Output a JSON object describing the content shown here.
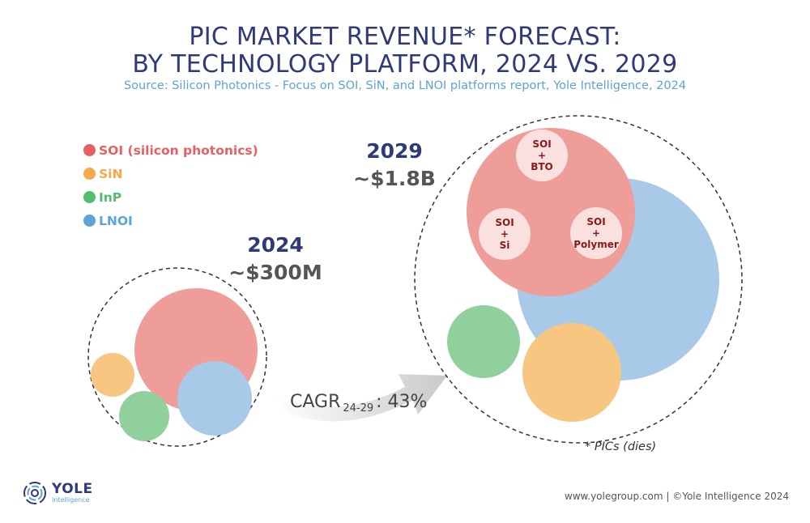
{
  "title_line1": "PIC MARKET REVENUE* FORECAST:",
  "title_line2": "BY TECHNOLOGY PLATFORM, 2024 VS. 2029",
  "source": "Source: Silicon Photonics  - Focus on SOI, SiN, and LNOI platforms  report, Yole Intelligence, 2024",
  "legend": [
    {
      "label": "SOI (silicon photonics)",
      "color": "#e85f62"
    },
    {
      "label": "SiN",
      "color": "#f6a84a"
    },
    {
      "label": "InP",
      "color": "#52bd6f"
    },
    {
      "label": "LNOI",
      "color": "#5da4d8"
    }
  ],
  "chart_data": {
    "type": "bubble",
    "groups": [
      {
        "year": "2024",
        "total_label": "~$300M"
      },
      {
        "year": "2029",
        "total_label": "~$1.8B",
        "soi_sub_segments": [
          "SOI\n+\nBTO",
          "SOI\n+\nSi",
          "SOI\n+\nPolymer"
        ]
      }
    ],
    "annotation": {
      "cagr_prefix": "CAGR",
      "cagr_sub": "24-29",
      "cagr_suffix": ": 43%"
    }
  },
  "footnote": "* PICs (dies)",
  "footer": "www.yolegroup.com | ©Yole Intelligence 2024",
  "logo": {
    "name": "YOLE",
    "sub": "Intelligence"
  }
}
